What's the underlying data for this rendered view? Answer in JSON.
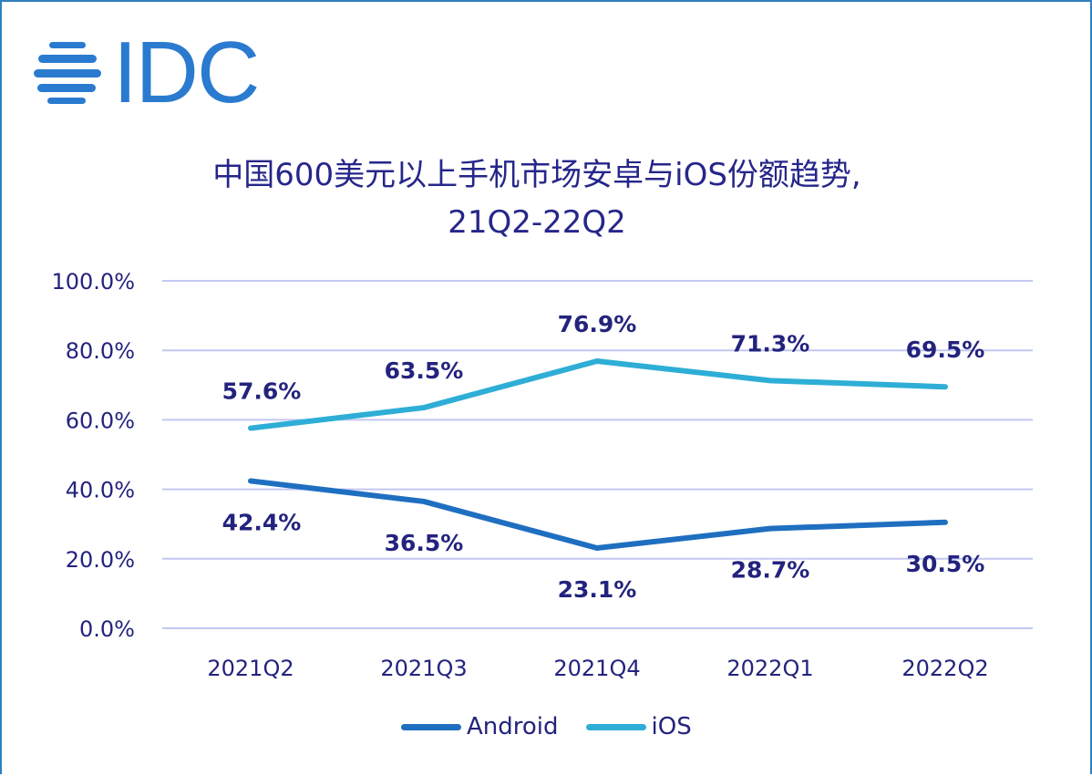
{
  "logo": {
    "text": "IDC"
  },
  "colors": {
    "android": "#1f6fc0",
    "ios": "#2eaed6",
    "text": "#23237e",
    "grid": "#c3c8f2",
    "frame": "#2f7fbf"
  },
  "chart_data": {
    "type": "line",
    "title": "中国600美元以上手机市场安卓与iOS份额趋势,",
    "subtitle": "21Q2-22Q2",
    "categories": [
      "2021Q2",
      "2021Q3",
      "2021Q4",
      "2022Q1",
      "2022Q2"
    ],
    "series": [
      {
        "name": "Android",
        "values": [
          42.4,
          36.5,
          23.1,
          28.7,
          30.5
        ],
        "labels": [
          "42.4%",
          "36.5%",
          "23.1%",
          "28.7%",
          "30.5%"
        ]
      },
      {
        "name": "iOS",
        "values": [
          57.6,
          63.5,
          76.9,
          71.3,
          69.5
        ],
        "labels": [
          "57.6%",
          "63.5%",
          "76.9%",
          "71.3%",
          "69.5%"
        ]
      }
    ],
    "yticks": [
      0,
      20,
      40,
      60,
      80,
      100
    ],
    "ytick_labels": [
      "0.0%",
      "20.0%",
      "40.0%",
      "60.0%",
      "80.0%",
      "100.0%"
    ],
    "ylim": [
      0,
      100
    ],
    "grid": true,
    "legend": "bottom"
  }
}
